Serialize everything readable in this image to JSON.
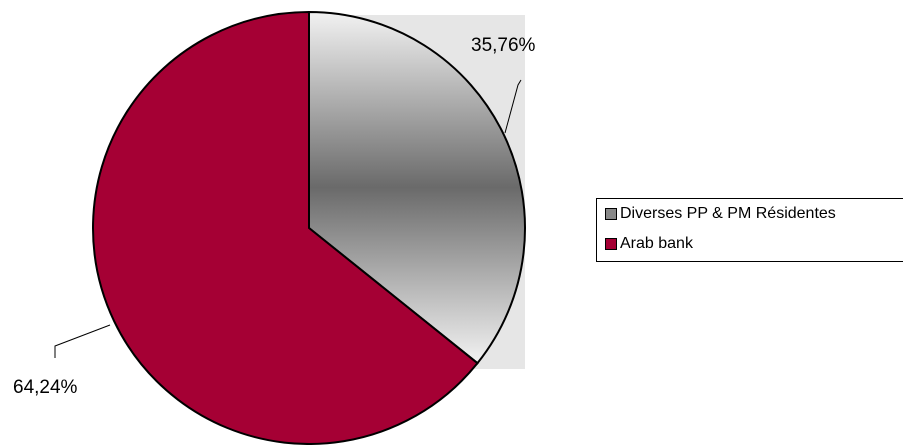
{
  "chart_data": {
    "type": "pie",
    "slices": [
      {
        "label": "Diverses PP & PM Résidentes",
        "value": 35.76,
        "display": "35,76%",
        "color": "#777777"
      },
      {
        "label": "Arab bank",
        "value": 64.24,
        "display": "64,24%",
        "color": "#A50034"
      }
    ],
    "legend": {
      "placement": "right"
    },
    "grid": false
  }
}
